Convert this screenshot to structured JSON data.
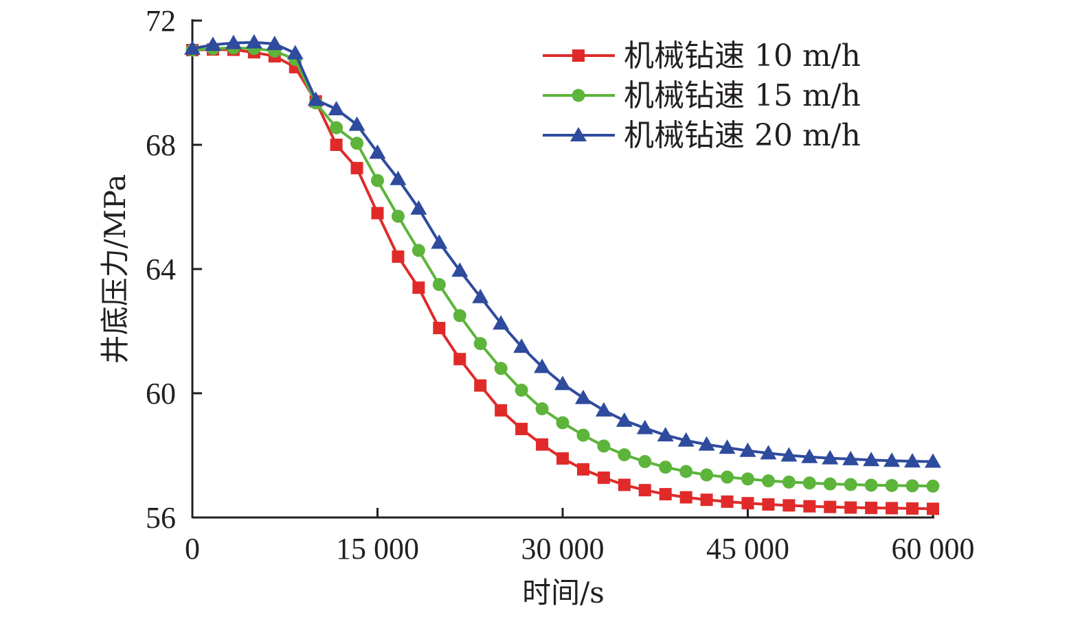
{
  "chart_data": {
    "type": "line",
    "title": "",
    "xlabel": "时间/s",
    "ylabel": "井底压力/MPa",
    "xlim": [
      0,
      60000
    ],
    "ylim": [
      56,
      72
    ],
    "xticks": [
      0,
      15000,
      30000,
      45000,
      60000
    ],
    "xtick_labels": [
      "0",
      "15 000",
      "30 000",
      "45 000",
      "60 000"
    ],
    "yticks": [
      56,
      60,
      64,
      68,
      72
    ],
    "ytick_labels": [
      "56",
      "60",
      "64",
      "68",
      "72"
    ],
    "grid": false,
    "legend_position": "top-right",
    "x": [
      0,
      1667,
      3333,
      5000,
      6667,
      8333,
      10000,
      11667,
      13333,
      15000,
      16667,
      18333,
      20000,
      21667,
      23333,
      25000,
      26667,
      28333,
      30000,
      31667,
      33333,
      35000,
      36667,
      38333,
      40000,
      41667,
      43333,
      45000,
      46667,
      48333,
      50000,
      51667,
      53333,
      55000,
      56667,
      58333,
      60000
    ],
    "series": [
      {
        "name": "机械钻速 10 m/h",
        "color": "#e02a2a",
        "marker": "square",
        "values": [
          71.05,
          71.07,
          71.06,
          70.98,
          70.85,
          70.5,
          69.4,
          68.0,
          67.25,
          65.8,
          64.4,
          63.4,
          62.1,
          61.1,
          60.25,
          59.45,
          58.85,
          58.35,
          57.9,
          57.55,
          57.28,
          57.05,
          56.88,
          56.75,
          56.65,
          56.57,
          56.51,
          56.46,
          56.42,
          56.39,
          56.36,
          56.34,
          56.32,
          56.31,
          56.3,
          56.29,
          56.28
        ]
      },
      {
        "name": "机械钻速 15 m/h",
        "color": "#5db43b",
        "marker": "circle",
        "values": [
          71.05,
          71.1,
          71.12,
          71.1,
          71.02,
          70.75,
          69.35,
          68.55,
          68.05,
          66.85,
          65.7,
          64.6,
          63.5,
          62.5,
          61.6,
          60.8,
          60.1,
          59.5,
          59.05,
          58.65,
          58.3,
          58.02,
          57.8,
          57.62,
          57.48,
          57.37,
          57.3,
          57.24,
          57.18,
          57.14,
          57.11,
          57.08,
          57.06,
          57.04,
          57.03,
          57.02,
          57.01
        ]
      },
      {
        "name": "机械钻速 20 m/h",
        "color": "#2e4b9d",
        "marker": "triangle",
        "values": [
          71.1,
          71.22,
          71.28,
          71.3,
          71.25,
          70.95,
          69.45,
          69.15,
          68.65,
          67.75,
          66.9,
          65.95,
          64.85,
          63.95,
          63.1,
          62.25,
          61.5,
          60.85,
          60.3,
          59.85,
          59.45,
          59.12,
          58.88,
          58.65,
          58.48,
          58.35,
          58.25,
          58.15,
          58.07,
          58.0,
          57.95,
          57.91,
          57.88,
          57.85,
          57.83,
          57.81,
          57.8
        ]
      }
    ]
  }
}
